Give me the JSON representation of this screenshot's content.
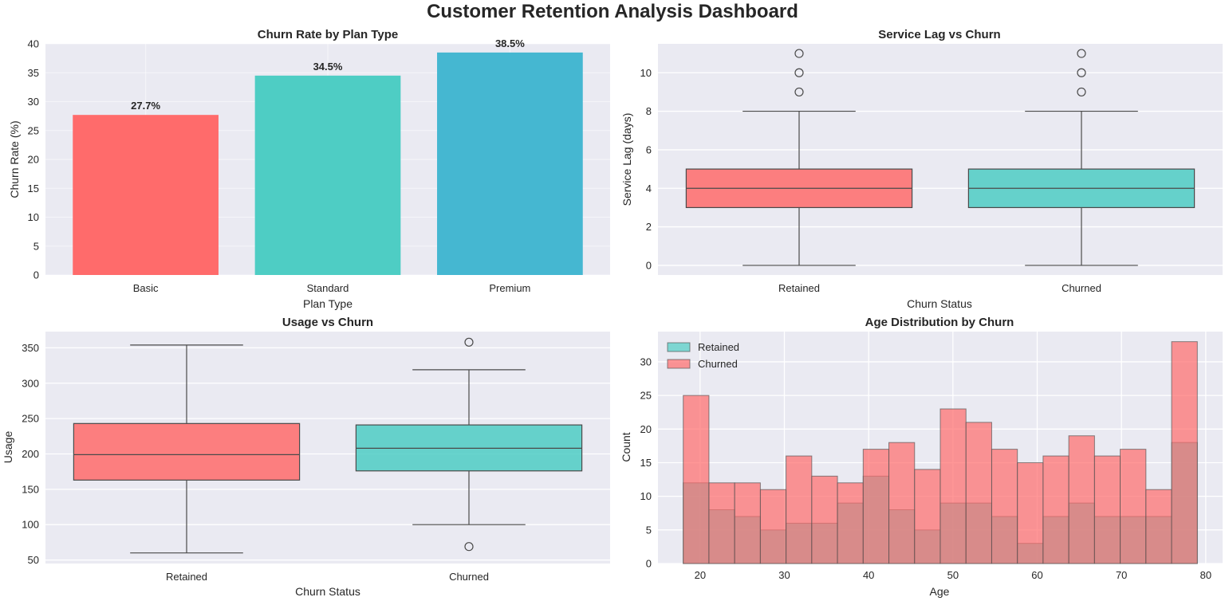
{
  "title": "Customer Retention Analysis Dashboard",
  "colors": {
    "basic": "#FF6B6B",
    "standard": "#4ECDC4",
    "premium": "#45B7D1",
    "retained": "#4ECDC4",
    "churned": "#FF6B6B"
  },
  "chart_data": [
    {
      "type": "bar",
      "title": "Churn Rate by Plan Type",
      "xlabel": "Plan Type",
      "ylabel": "Churn Rate (%)",
      "categories": [
        "Basic",
        "Standard",
        "Premium"
      ],
      "values": [
        27.7,
        34.5,
        38.5
      ],
      "data_labels": [
        "27.7%",
        "34.5%",
        "38.5%"
      ],
      "ylim": [
        0,
        40
      ],
      "yticks": [
        0,
        5,
        10,
        15,
        20,
        25,
        30,
        35,
        40
      ],
      "grid": true
    },
    {
      "type": "box",
      "title": "Service Lag vs Churn",
      "xlabel": "Churn Status",
      "ylabel": "Service Lag (days)",
      "categories": [
        "Retained",
        "Churned"
      ],
      "boxes": [
        {
          "whislo": 0,
          "q1": 3,
          "med": 4,
          "q3": 5,
          "whishi": 8,
          "fliers": [
            9,
            10,
            11
          ]
        },
        {
          "whislo": 0,
          "q1": 3,
          "med": 4,
          "q3": 5,
          "whishi": 8,
          "fliers": [
            9,
            10,
            11
          ]
        }
      ],
      "ylim": [
        -0.5,
        11.5
      ],
      "yticks": [
        0,
        2,
        4,
        6,
        8,
        10
      ],
      "grid": true
    },
    {
      "type": "box",
      "title": "Usage vs Churn",
      "xlabel": "Churn Status",
      "ylabel": "Usage",
      "categories": [
        "Retained",
        "Churned"
      ],
      "boxes": [
        {
          "whislo": 60,
          "q1": 163,
          "med": 199,
          "q3": 243,
          "whishi": 354,
          "fliers": []
        },
        {
          "whislo": 100,
          "q1": 176,
          "med": 208,
          "q3": 241,
          "whishi": 319,
          "fliers": [
            69,
            358
          ]
        }
      ],
      "ylim": [
        45,
        373
      ],
      "yticks": [
        50,
        100,
        150,
        200,
        250,
        300,
        350
      ],
      "grid": true
    },
    {
      "type": "histogram",
      "title": "Age Distribution by Churn",
      "xlabel": "Age",
      "ylabel": "Count",
      "bin_edges": [
        18,
        21.05,
        24.1,
        27.15,
        30.2,
        33.25,
        36.3,
        39.35,
        42.4,
        45.45,
        48.5,
        51.55,
        54.6,
        57.65,
        60.7,
        63.75,
        66.8,
        69.85,
        72.9,
        75.95,
        79
      ],
      "series": [
        {
          "name": "Retained",
          "values": [
            12,
            8,
            7,
            5,
            6,
            6,
            9,
            13,
            8,
            5,
            9,
            9,
            7,
            3,
            7,
            9,
            7,
            7,
            7,
            18
          ]
        },
        {
          "name": "Churned",
          "values": [
            25,
            12,
            12,
            11,
            16,
            13,
            12,
            17,
            18,
            14,
            23,
            21,
            17,
            15,
            16,
            19,
            16,
            17,
            11,
            33
          ]
        }
      ],
      "xlim": [
        15,
        82
      ],
      "ylim": [
        0,
        34.5
      ],
      "xticks": [
        20,
        30,
        40,
        50,
        60,
        70,
        80
      ],
      "yticks": [
        0,
        5,
        10,
        15,
        20,
        25,
        30
      ],
      "legend": "upper-left",
      "grid": true
    }
  ]
}
